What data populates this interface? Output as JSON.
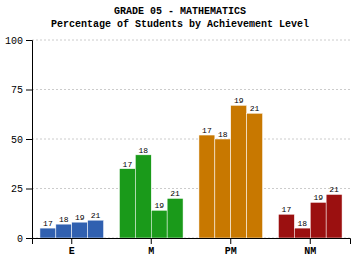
{
  "chart_data": {
    "type": "bar",
    "title": "GRADE 05  -  MATHEMATICS",
    "subtitle": "Percentage of Students by Achievement Level",
    "categories": [
      "E",
      "M",
      "PM",
      "NM"
    ],
    "colors": [
      "#3060b0",
      "#1a9a1a",
      "#C87800",
      "#9B1010"
    ],
    "series": [
      {
        "name": "17",
        "values": [
          5,
          35,
          52,
          12
        ]
      },
      {
        "name": "18",
        "values": [
          7,
          42,
          50,
          5
        ]
      },
      {
        "name": "19",
        "values": [
          8,
          14,
          67,
          18
        ]
      },
      {
        "name": "21",
        "values": [
          9,
          20,
          63,
          22
        ]
      }
    ],
    "ylim": [
      0,
      100
    ],
    "yticks": [
      0,
      25,
      50,
      75,
      100
    ],
    "grid": true
  }
}
